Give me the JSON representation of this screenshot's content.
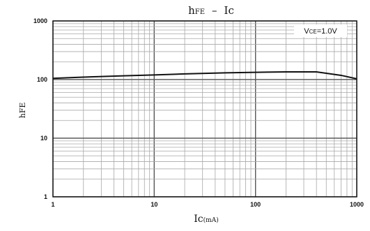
{
  "chart_data": {
    "type": "line",
    "title_main": "h",
    "title_sub": "FE",
    "title_dash": "–",
    "title_right": "Ic",
    "xlabel_main": "Ic",
    "xlabel_unit": "(mA)",
    "ylabel": "hFE",
    "xscale": "log",
    "yscale": "log",
    "xlim": [
      1,
      1000
    ],
    "ylim": [
      1,
      1000
    ],
    "grid": true,
    "xticks": [
      "1",
      "10",
      "100",
      "1000"
    ],
    "yticks": [
      "1",
      "10",
      "100",
      "1000"
    ],
    "annotation": {
      "main": "V",
      "sub": "CE",
      "value": "=1.0V"
    },
    "series": [
      {
        "x": [
          1,
          2,
          5,
          10,
          20,
          50,
          100,
          200,
          400,
          500,
          700,
          1000
        ],
        "y": [
          105,
          110,
          116,
          120,
          125,
          130,
          133,
          135,
          135,
          128,
          118,
          103
        ]
      }
    ]
  }
}
